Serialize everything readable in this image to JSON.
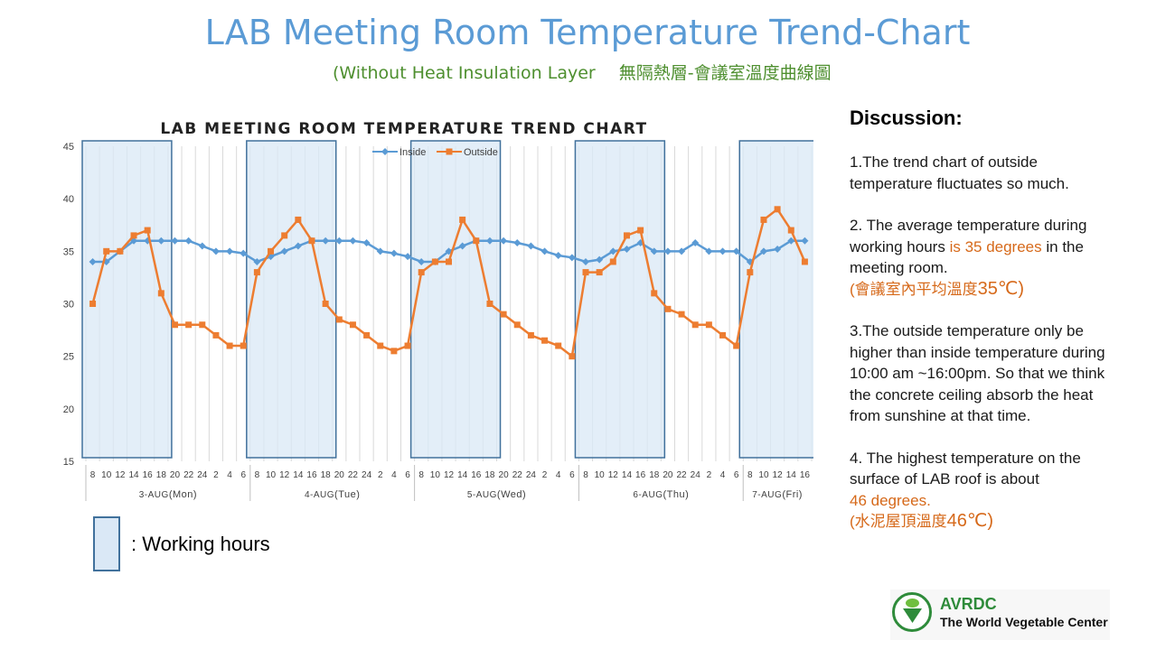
{
  "header": {
    "title": "LAB Meeting Room Temperature Trend-Chart",
    "subtitle_en": "(Without Heat Insulation Layer",
    "subtitle_zh": "無隔熱層-會議室溫度曲線圖"
  },
  "chart_data": {
    "type": "line",
    "title": "LAB MEETING ROOM TEMPERATURE TREND CHART",
    "ylim": [
      15,
      45
    ],
    "yticks": [
      15,
      20,
      25,
      30,
      35,
      40,
      45
    ],
    "grid": "vertical",
    "legend_position": "top",
    "x": [
      "8",
      "10",
      "12",
      "14",
      "16",
      "18",
      "20",
      "22",
      "24",
      "2",
      "4",
      "6",
      "8",
      "10",
      "12",
      "14",
      "16",
      "18",
      "20",
      "22",
      "24",
      "2",
      "4",
      "6",
      "8",
      "10",
      "12",
      "14",
      "16",
      "18",
      "20",
      "22",
      "24",
      "2",
      "4",
      "6",
      "8",
      "10",
      "12",
      "14",
      "16",
      "18",
      "20",
      "22",
      "24",
      "2",
      "4",
      "6",
      "8",
      "10",
      "12",
      "14",
      "16"
    ],
    "day_groups": [
      {
        "label": "3-AUG",
        "paren": "(Mon)",
        "count": 12
      },
      {
        "label": "4-AUG",
        "paren": "(Tue)",
        "count": 12
      },
      {
        "label": "5-AUG",
        "paren": "(Wed)",
        "count": 12
      },
      {
        "label": "6-AUG",
        "paren": "(Thu)",
        "count": 12
      },
      {
        "label": "7-AUG",
        "paren": "(Fri)",
        "count": 5
      }
    ],
    "shaded_ranges": [
      [
        0,
        5
      ],
      [
        12,
        17
      ],
      [
        24,
        29
      ],
      [
        36,
        41
      ],
      [
        48,
        52
      ]
    ],
    "series": [
      {
        "name": "Inside",
        "color": "#5b9bd5",
        "marker": "diamond",
        "values": [
          34,
          34,
          35,
          36,
          36,
          36,
          36,
          36,
          35.5,
          35,
          35,
          34.8,
          34,
          34.5,
          35,
          35.5,
          36,
          36,
          36,
          36,
          35.8,
          35,
          34.8,
          34.5,
          34,
          34,
          35,
          35.5,
          36,
          36,
          36,
          35.8,
          35.5,
          35,
          34.6,
          34.4,
          34,
          34.2,
          35,
          35.2,
          35.8,
          35,
          35,
          35,
          35.8,
          35,
          35,
          35,
          34,
          35,
          35.2,
          36,
          36
        ]
      },
      {
        "name": "Outside",
        "color": "#ed7d31",
        "marker": "square",
        "values": [
          30,
          35,
          35,
          36.5,
          37,
          31,
          28,
          28,
          28,
          27,
          26,
          26,
          33,
          35,
          36.5,
          38,
          36,
          30,
          28.5,
          28,
          27,
          26,
          25.5,
          26,
          33,
          34,
          34,
          38,
          36,
          30,
          29,
          28,
          27,
          26.5,
          26,
          25,
          33,
          33,
          34,
          36.5,
          37,
          31,
          29.5,
          29,
          28,
          28,
          27,
          26,
          33,
          38,
          39,
          37,
          34
        ]
      }
    ]
  },
  "legend": {
    "working_hours_label": ": Working hours",
    "box_color": "#dae8f6"
  },
  "discussion": {
    "title": "Discussion:",
    "p1": "1.The trend chart of outside temperature fluctuates so much.",
    "p2_a": "2. The average temperature during working hours ",
    "p2_b": "is 35 degrees",
    "p2_c": " in the meeting room.",
    "p2_d_zh": "(會議室內平均溫度",
    "p2_d_num": "35℃)",
    "p3": "3.The outside temperature only be higher than inside temperature during 10:00 am ~16:00pm. So that we think the concrete ceiling absorb the heat from sunshine at that time.",
    "p4_a": "4. The highest temperature on the surface of LAB roof is about",
    "p4_b": "46 degrees.",
    "p4_c_zh": "(水泥屋頂溫度",
    "p4_c_num": "46℃)"
  },
  "logo": {
    "name": "AVRDC",
    "tagline": "The World Vegetable Center"
  }
}
